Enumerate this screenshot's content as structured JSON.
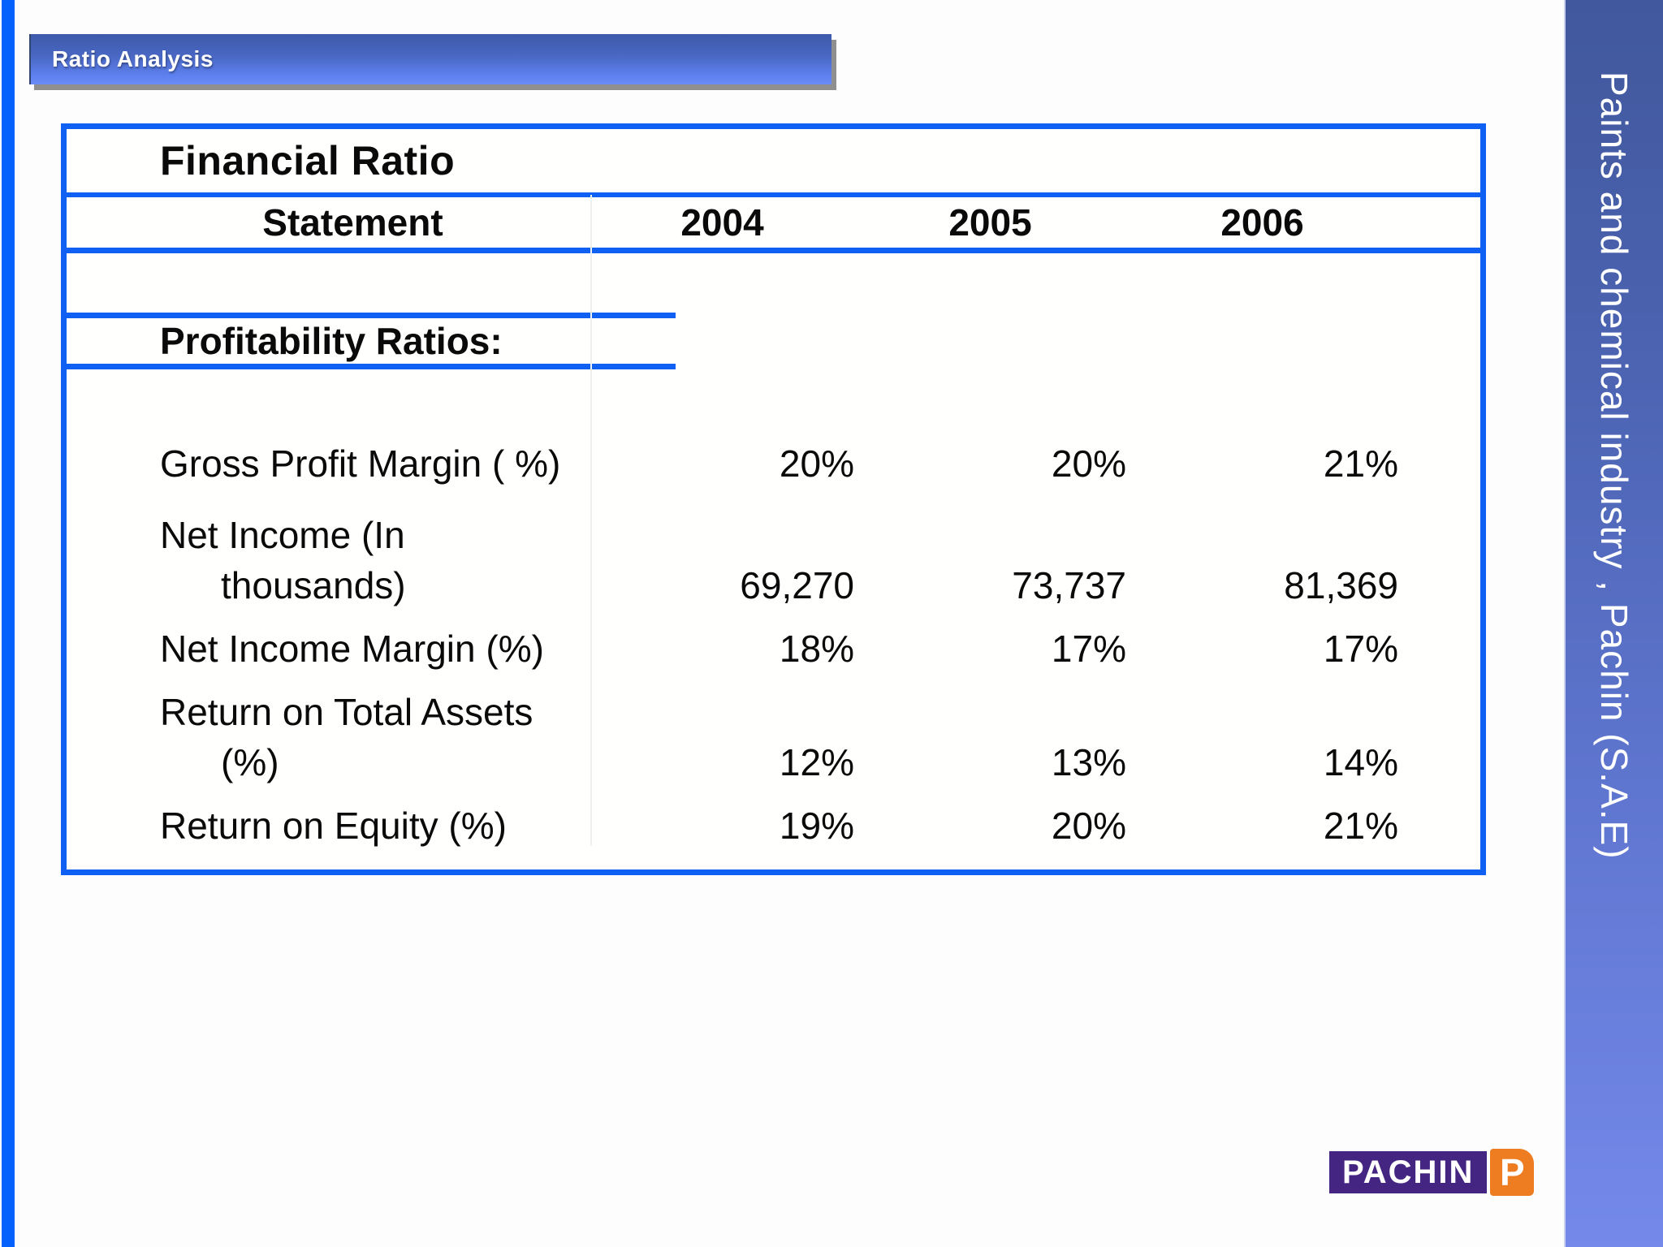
{
  "ribbon": {
    "label": "Ratio Analysis"
  },
  "sidebar": {
    "text": "Paints and chemical industry , Pachin (S.A.E)"
  },
  "table": {
    "title": "Financial Ratio",
    "columns": [
      "Statement",
      "2004",
      "2005",
      "2006"
    ],
    "section": "Profitability Ratios:",
    "rows": [
      {
        "label": "Gross Profit Margin ( %)",
        "label2": "",
        "values": [
          "20%",
          "20%",
          "21%"
        ]
      },
      {
        "label": "Net Income (In",
        "label2": "thousands)",
        "values": [
          "69,270",
          "73,737",
          "81,369"
        ]
      },
      {
        "label": "Net Income Margin (%)",
        "label2": "",
        "values": [
          "18%",
          "17%",
          "17%"
        ]
      },
      {
        "label": "Return on Total Assets",
        "label2": "(%)",
        "values": [
          "12%",
          "13%",
          "14%"
        ]
      },
      {
        "label": "Return on Equity (%)",
        "label2": "",
        "values": [
          "19%",
          "20%",
          "21%"
        ]
      }
    ]
  },
  "logo": {
    "word": "PACHIN",
    "monogram": "P"
  },
  "colors": {
    "accent_blue": "#1060f4",
    "strip_blue": "#0561fc",
    "ribbon_top": "#3d59a9",
    "ribbon_bottom": "#6b8cf8",
    "sidebar_top": "#41589d",
    "sidebar_bottom": "#7489ea",
    "logo_purple": "#452582",
    "logo_orange": "#ee7c20"
  }
}
